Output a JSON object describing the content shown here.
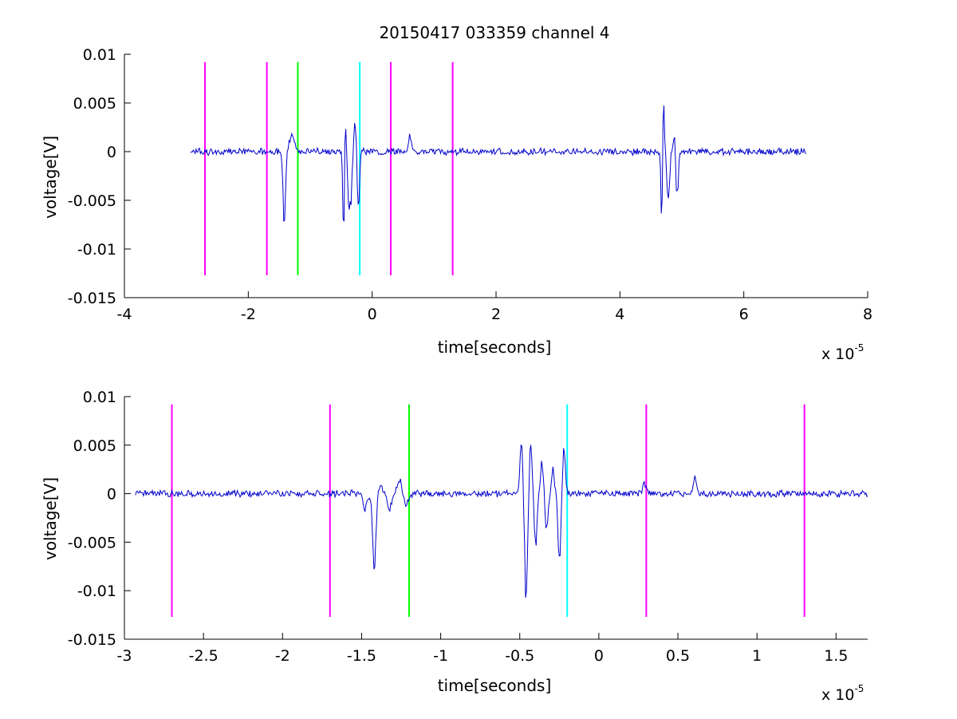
{
  "title": "20150417 033359 channel 4",
  "chart_data": [
    {
      "type": "line",
      "title": "20150417 033359 channel 4",
      "xlabel": "time[seconds]",
      "ylabel": "voltage[V]",
      "x_multiplier": "x 10",
      "x_multiplier_exponent": "-5",
      "xlim": [
        -4,
        8
      ],
      "ylim": [
        -0.015,
        0.01
      ],
      "xticks": [
        -4,
        -2,
        0,
        2,
        4,
        6,
        8
      ],
      "xtick_labels": [
        "-4",
        "-2",
        "0",
        "2",
        "4",
        "6",
        "8"
      ],
      "yticks": [
        0.01,
        0.005,
        0,
        -0.005,
        -0.01,
        -0.015
      ],
      "ytick_labels": [
        "0.01",
        "0.005",
        "0",
        "-0.005",
        "-0.01",
        "-0.015"
      ],
      "grid": false,
      "legend": "none",
      "signal": {
        "color": "#0000cc",
        "x_start": -2.93,
        "x_end": 7.0,
        "noise_amplitude": 0.0004,
        "bursts": [
          {
            "x": -1.42,
            "amp": -0.0072,
            "width": 0.03
          },
          {
            "x": -1.3,
            "amp": 0.0016,
            "width": 0.06
          },
          {
            "x": -0.46,
            "amp": -0.0115,
            "width": 0.02
          },
          {
            "x": -0.44,
            "amp": 0.0057,
            "width": 0.03
          },
          {
            "x": -0.36,
            "amp": -0.0058,
            "width": 0.05
          },
          {
            "x": -0.27,
            "amp": 0.0043,
            "width": 0.04
          },
          {
            "x": -0.23,
            "amp": -0.0073,
            "width": 0.03
          },
          {
            "x": 0.61,
            "amp": 0.0015,
            "width": 0.04
          },
          {
            "x": 4.68,
            "amp": -0.0092,
            "width": 0.02
          },
          {
            "x": 4.7,
            "amp": 0.0083,
            "width": 0.02
          },
          {
            "x": 4.78,
            "amp": -0.0052,
            "width": 0.03
          },
          {
            "x": 4.9,
            "amp": 0.003,
            "width": 0.04
          },
          {
            "x": 4.92,
            "amp": -0.0066,
            "width": 0.03
          }
        ]
      },
      "markers": [
        {
          "x": -2.7,
          "color": "#ff00ff"
        },
        {
          "x": -1.7,
          "color": "#ff00ff"
        },
        {
          "x": -1.2,
          "color": "#00ff00"
        },
        {
          "x": -0.2,
          "color": "#00ffff"
        },
        {
          "x": 0.3,
          "color": "#ff00ff"
        },
        {
          "x": 1.3,
          "color": "#ff00ff"
        }
      ],
      "marker_range": [
        -0.0127,
        0.0092
      ]
    },
    {
      "type": "line",
      "title": "",
      "xlabel": "time[seconds]",
      "ylabel": "voltage[V]",
      "x_multiplier": "x 10",
      "x_multiplier_exponent": "-5",
      "xlim": [
        -3.0,
        1.7
      ],
      "ylim": [
        -0.015,
        0.01
      ],
      "xticks": [
        -3,
        -2.5,
        -2,
        -1.5,
        -1,
        -0.5,
        0,
        0.5,
        1,
        1.5
      ],
      "xtick_labels": [
        "-3",
        "-2.5",
        "-2",
        "-1.5",
        "-1",
        "-0.5",
        "0",
        "0.5",
        "1",
        "1.5"
      ],
      "yticks": [
        0.01,
        0.005,
        0,
        -0.005,
        -0.01,
        -0.015
      ],
      "ytick_labels": [
        "0.01",
        "0.005",
        "0",
        "-0.005",
        "-0.01",
        "-0.015"
      ],
      "grid": false,
      "legend": "none",
      "signal": {
        "color": "#0000cc",
        "x_start": -2.93,
        "x_end": 1.7,
        "noise_amplitude": 0.0004,
        "bursts": [
          {
            "x": -1.42,
            "amp": -0.0072,
            "width": 0.015
          },
          {
            "x": -1.48,
            "amp": -0.0014,
            "width": 0.02
          },
          {
            "x": -1.38,
            "amp": 0.0008,
            "width": 0.02
          },
          {
            "x": -1.32,
            "amp": -0.0014,
            "width": 0.02
          },
          {
            "x": -1.26,
            "amp": 0.0015,
            "width": 0.02
          },
          {
            "x": -1.22,
            "amp": -0.0012,
            "width": 0.02
          },
          {
            "x": -0.49,
            "amp": 0.0057,
            "width": 0.012
          },
          {
            "x": -0.46,
            "amp": -0.0115,
            "width": 0.012
          },
          {
            "x": -0.43,
            "amp": 0.0048,
            "width": 0.012
          },
          {
            "x": -0.4,
            "amp": -0.0055,
            "width": 0.012
          },
          {
            "x": -0.36,
            "amp": 0.0035,
            "width": 0.012
          },
          {
            "x": -0.33,
            "amp": -0.004,
            "width": 0.012
          },
          {
            "x": -0.29,
            "amp": 0.0028,
            "width": 0.012
          },
          {
            "x": -0.25,
            "amp": -0.0073,
            "width": 0.012
          },
          {
            "x": -0.22,
            "amp": 0.0048,
            "width": 0.012
          },
          {
            "x": 0.29,
            "amp": 0.001,
            "width": 0.02
          },
          {
            "x": 0.61,
            "amp": 0.0015,
            "width": 0.015
          }
        ]
      },
      "markers": [
        {
          "x": -2.7,
          "color": "#ff00ff"
        },
        {
          "x": -1.7,
          "color": "#ff00ff"
        },
        {
          "x": -1.2,
          "color": "#00ff00"
        },
        {
          "x": -0.2,
          "color": "#00ffff"
        },
        {
          "x": 0.3,
          "color": "#ff00ff"
        },
        {
          "x": 1.3,
          "color": "#ff00ff"
        }
      ],
      "marker_range": [
        -0.0127,
        0.0092
      ]
    }
  ]
}
